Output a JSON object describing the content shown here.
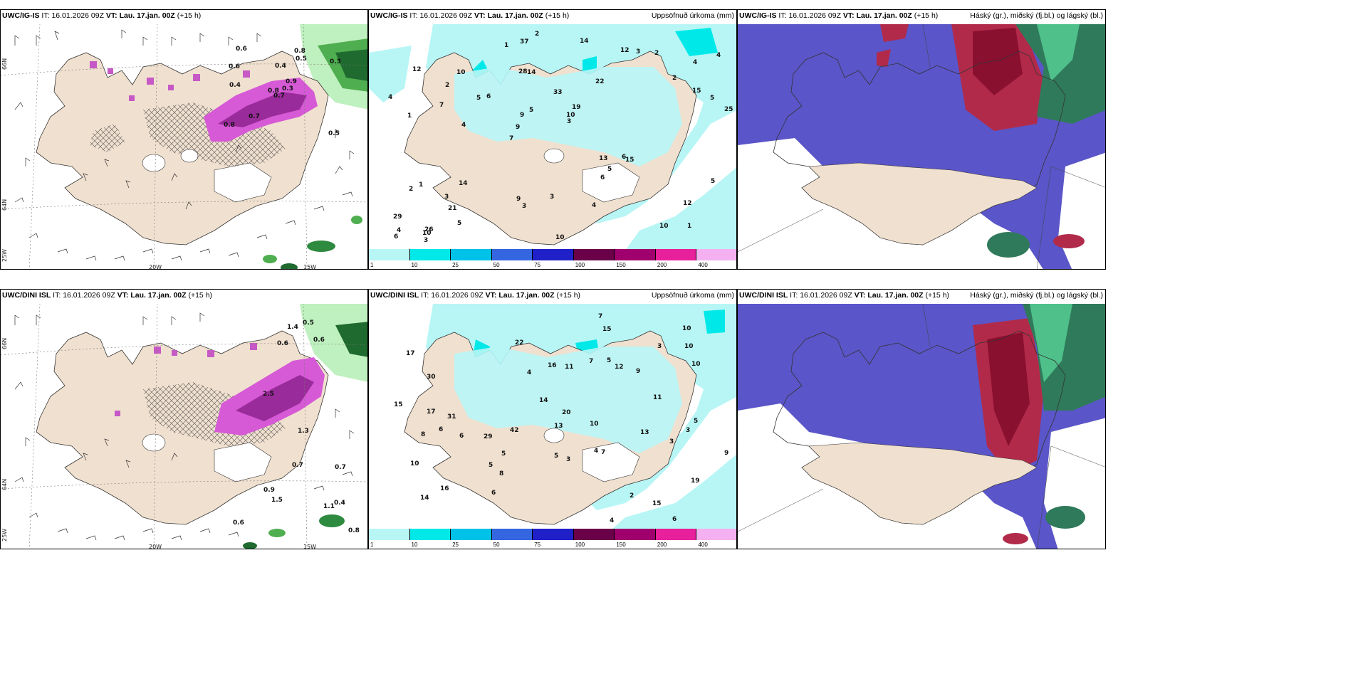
{
  "panels": [
    {
      "model": "UWC/IG-IS",
      "it_label": "IT:",
      "it": "16.01.2026 09Z",
      "vt_label": "VT:",
      "vt": "Lau. 17.jan. 00Z",
      "lead": "(+15 h)",
      "right": ""
    },
    {
      "model": "UWC/IG-IS",
      "it_label": "IT:",
      "it": "16.01.2026 09Z",
      "vt_label": "VT:",
      "vt": "Lau. 17.jan. 00Z",
      "lead": "(+15 h)",
      "right": "Uppsöfnuð úrkoma (mm)"
    },
    {
      "model": "UWC/IG-IS",
      "it_label": "IT:",
      "it": "16.01.2026 09Z",
      "vt_label": "VT:",
      "vt": "Lau. 17.jan. 00Z",
      "lead": "(+15 h)",
      "right": "Háský (gr.), miðský (fj.bl.) og lágský (bl.)"
    },
    {
      "model": "UWC/DINI ISL",
      "it_label": "IT:",
      "it": "16.01.2026 09Z",
      "vt_label": "VT:",
      "vt": "Lau. 17.jan. 00Z",
      "lead": "(+15 h)",
      "right": ""
    },
    {
      "model": "UWC/DINI ISL",
      "it_label": "IT:",
      "it": "16.01.2026 09Z",
      "vt_label": "VT:",
      "vt": "Lau. 17.jan. 00Z",
      "lead": "(+15 h)",
      "right": "Uppsöfnuð úrkoma (mm)"
    },
    {
      "model": "UWC/DINI ISL",
      "it_label": "IT:",
      "it": "16.01.2026 09Z",
      "vt_label": "VT:",
      "vt": "Lau. 17.jan. 00Z",
      "lead": "(+15 h)",
      "right": "Háský (gr.), miðský (fj.bl.) og lágský (bl.)"
    }
  ],
  "axis_labels": {
    "lat66": "66N",
    "lat64": "64N",
    "lon25": "25W",
    "lon20": "20W",
    "lon15": "15W"
  },
  "colorbar": {
    "ticks": [
      "1",
      "10",
      "25",
      "50",
      "75",
      "100",
      "150",
      "200",
      "400"
    ],
    "colors": [
      "#b8f6f6",
      "#00e8e8",
      "#00c2e8",
      "#3366e0",
      "#2020c8",
      "#6a0048",
      "#a0006e",
      "#e8209c",
      "#f4b0f0"
    ]
  },
  "precip_top": [
    "1",
    "1",
    "4",
    "7",
    "22",
    "26",
    "28",
    "33",
    "1",
    "6",
    "29",
    "21",
    "14",
    "19",
    "15",
    "12",
    "37",
    "25",
    "13",
    "15",
    "9",
    "9",
    "9",
    "10",
    "12",
    "14",
    "10",
    "12",
    "6",
    "10",
    "5",
    "7",
    "6",
    "5",
    "5",
    "10",
    "4",
    "3",
    "3",
    "2",
    "2",
    "4",
    "5",
    "4",
    "3",
    "3",
    "6",
    "3",
    "2",
    "2",
    "4",
    "4",
    "2",
    "3",
    "10",
    "14",
    "1",
    "5",
    "5"
  ],
  "precip_bottom": [
    "6",
    "6",
    "4",
    "17",
    "19",
    "30",
    "16",
    "29",
    "9",
    "16",
    "12",
    "15",
    "8",
    "22",
    "10",
    "10",
    "13",
    "20",
    "15",
    "14",
    "10",
    "11",
    "11",
    "9",
    "5",
    "17",
    "6",
    "13",
    "14",
    "10",
    "7",
    "8",
    "5",
    "5",
    "4",
    "3",
    "3",
    "2",
    "3",
    "4",
    "5",
    "3",
    "6",
    "7",
    "42",
    "31",
    "10",
    "15",
    "7",
    "5"
  ],
  "ice_top": [
    "0.7",
    "0.6",
    "0.8",
    "0.8",
    "0.9",
    "0.7",
    "0.8",
    "0.4",
    "0.5",
    "0.3",
    "0.6",
    "0.5",
    "0.4",
    "0.3"
  ],
  "ice_bottom": [
    "0.6",
    "0.7",
    "1.3",
    "0.7",
    "0.6",
    "0.5",
    "0.4",
    "0.6",
    "1.1",
    "0.9",
    "0.8",
    "2.5",
    "1.5",
    "1.4"
  ]
}
